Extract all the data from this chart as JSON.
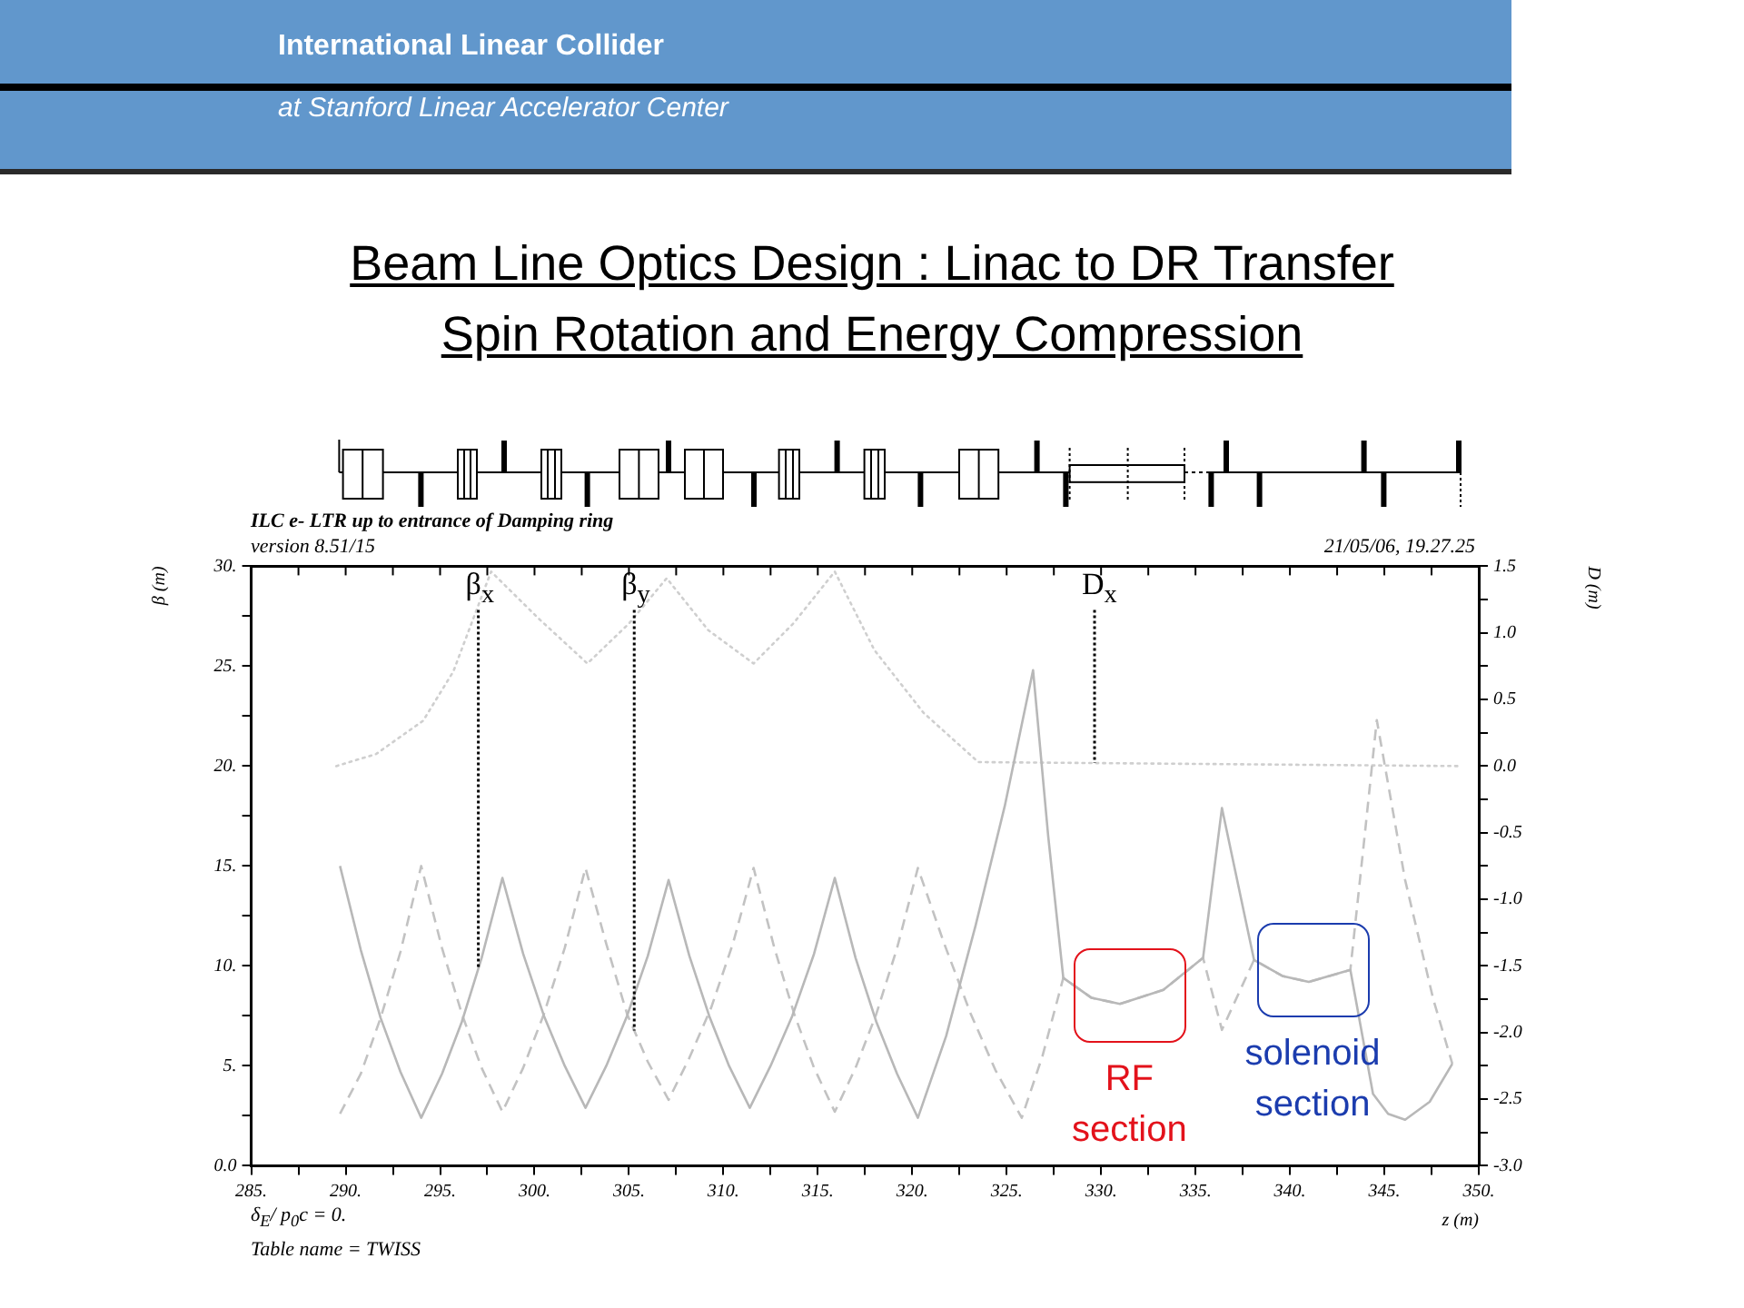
{
  "chart_data": {
    "type": "line",
    "title": "Beam Line Optics Design : Linac to DR Transfer",
    "subtitle": "Spin Rotation and Energy Compression",
    "xlabel": "z (m)",
    "ylabel": "β (m)",
    "y2label": "D (m)",
    "annotations": [
      "International Linear Collider",
      "at Stanford Linear Accelerator Center",
      "ILC e- LTR up to entrance of Damping ring",
      "version 8.51/15",
      "21/05/06, 19.27.25",
      "δ$_{E}$/ p$_{0}$c = 0.",
      "Table name = TWISS",
      {
        "text": "RF section",
        "x": 331.5,
        "y": 8.0
      },
      {
        "text": "solenoid section",
        "x": 341.2,
        "y": 9.25
      }
    ],
    "xlim": [
      285,
      350
    ],
    "xticks": [
      {
        "value": 285,
        "label": "285."
      },
      {
        "value": 287.5,
        "label": null
      },
      {
        "value": 290,
        "label": "290."
      },
      {
        "value": 292.5,
        "label": null
      },
      {
        "value": 295,
        "label": "295."
      },
      {
        "value": 297.5,
        "label": null
      },
      {
        "value": 300,
        "label": "300."
      },
      {
        "value": 302.5,
        "label": null
      },
      {
        "value": 305,
        "label": "305."
      },
      {
        "value": 307.5,
        "label": null
      },
      {
        "value": 310,
        "label": "310."
      },
      {
        "value": 312.5,
        "label": null
      },
      {
        "value": 315,
        "label": "315."
      },
      {
        "value": 317.5,
        "label": null
      },
      {
        "value": 320,
        "label": "320."
      },
      {
        "value": 322.5,
        "label": null
      },
      {
        "value": 325,
        "label": "325."
      },
      {
        "value": 327.5,
        "label": null
      },
      {
        "value": 330,
        "label": "330."
      },
      {
        "value": 332.5,
        "label": null
      },
      {
        "value": 335,
        "label": "335."
      },
      {
        "value": 337.5,
        "label": null
      },
      {
        "value": 340,
        "label": "340."
      },
      {
        "value": 342.5,
        "label": null
      },
      {
        "value": 345,
        "label": "345."
      },
      {
        "value": 347.5,
        "label": null
      },
      {
        "value": 350,
        "label": "350."
      }
    ],
    "ylim": [
      0,
      30
    ],
    "yticks": [
      {
        "value": 0,
        "label": "0.0"
      },
      {
        "value": 2.5,
        "label": null
      },
      {
        "value": 5,
        "label": "5."
      },
      {
        "value": 7.5,
        "label": null
      },
      {
        "value": 10,
        "label": "10."
      },
      {
        "value": 12.5,
        "label": null
      },
      {
        "value": 15,
        "label": "15."
      },
      {
        "value": 17.5,
        "label": null
      },
      {
        "value": 20,
        "label": "20."
      },
      {
        "value": 22.5,
        "label": null
      },
      {
        "value": 25,
        "label": "25."
      },
      {
        "value": 27.5,
        "label": null
      },
      {
        "value": 30,
        "label": "30."
      }
    ],
    "y2lim": [
      -3,
      1.5
    ],
    "y2ticks": [
      {
        "value": -3,
        "label": "-3.0"
      },
      {
        "value": -2.75,
        "label": null
      },
      {
        "value": -2.5,
        "label": "-2.5"
      },
      {
        "value": -2.25,
        "label": null
      },
      {
        "value": -2,
        "label": "-2.0"
      },
      {
        "value": -1.75,
        "label": null
      },
      {
        "value": -1.5,
        "label": "-1.5"
      },
      {
        "value": -1.25,
        "label": null
      },
      {
        "value": -1,
        "label": "-1.0"
      },
      {
        "value": -0.75,
        "label": null
      },
      {
        "value": -0.5,
        "label": "-0.5"
      },
      {
        "value": -0.25,
        "label": null
      },
      {
        "value": 0,
        "label": "0.0"
      },
      {
        "value": 0.25,
        "label": null
      },
      {
        "value": 0.5,
        "label": "0.5"
      },
      {
        "value": 0.75,
        "label": null
      },
      {
        "value": 1,
        "label": "1.0"
      },
      {
        "value": 1.25,
        "label": null
      },
      {
        "value": 1.5,
        "label": "1.5"
      }
    ],
    "series": [
      {
        "name": "β$_{x}$",
        "color": "#b8b8b8",
        "line_style": "solid",
        "x": [
          289.7,
          290.8,
          291.85,
          292.9,
          294.0,
          295.1,
          296.15,
          297.2,
          298.3,
          299.4,
          300.5,
          301.6,
          302.7,
          303.8,
          304.9,
          306.0,
          307.1,
          308.2,
          309.25,
          310.3,
          311.4,
          312.5,
          313.65,
          314.8,
          315.9,
          317.0,
          318.1,
          319.2,
          320.3,
          321.8,
          323.35,
          324.9,
          326.4,
          327.2,
          328.0,
          329.5,
          331.0,
          333.3,
          335.4,
          336.4,
          338.1,
          339.6,
          341.0,
          343.2,
          344.4,
          345.2,
          346.1,
          347.4,
          348.6
        ],
        "values": [
          15.0,
          10.8,
          7.4,
          4.7,
          2.4,
          4.6,
          7.2,
          10.4,
          14.4,
          10.6,
          7.5,
          5.0,
          2.9,
          5.0,
          7.5,
          10.5,
          14.3,
          10.5,
          7.5,
          5.0,
          2.9,
          5.0,
          7.5,
          10.6,
          14.4,
          10.4,
          7.2,
          4.6,
          2.4,
          6.5,
          12.0,
          18.0,
          24.8,
          16.5,
          9.4,
          8.4,
          8.1,
          8.8,
          10.4,
          17.9,
          10.3,
          9.5,
          9.2,
          9.8,
          3.6,
          2.6,
          2.3,
          3.2,
          5.1
        ]
      },
      {
        "name": "β$_{y}$",
        "color": "#c2c2c2",
        "line_style": "dashed",
        "x": [
          289.7,
          290.8,
          291.85,
          292.9,
          294.0,
          295.1,
          296.15,
          297.2,
          298.3,
          299.4,
          300.5,
          301.6,
          302.7,
          303.8,
          304.9,
          306.0,
          307.1,
          308.2,
          309.35,
          310.5,
          311.6,
          312.7,
          313.75,
          314.8,
          315.9,
          317.0,
          318.1,
          319.2,
          320.3,
          321.7,
          323.1,
          324.4,
          325.8,
          326.9,
          328.0,
          329.5,
          331.0,
          333.3,
          335.4,
          336.4,
          338.1,
          339.6,
          341.0,
          343.2,
          343.9,
          344.6,
          346.1,
          347.6,
          348.6
        ],
        "values": [
          2.6,
          4.6,
          7.4,
          10.7,
          15.0,
          10.9,
          7.6,
          4.9,
          2.7,
          4.9,
          7.6,
          10.9,
          14.9,
          11.1,
          7.6,
          5.2,
          3.3,
          5.4,
          7.9,
          11.1,
          14.9,
          10.9,
          7.6,
          4.9,
          2.7,
          4.9,
          7.6,
          10.9,
          14.9,
          11.1,
          7.6,
          4.8,
          2.4,
          5.5,
          9.4,
          8.4,
          8.1,
          8.8,
          10.4,
          6.8,
          10.3,
          9.5,
          9.2,
          9.8,
          16.0,
          22.3,
          14.3,
          8.3,
          5.1
        ]
      },
      {
        "name": "D$_{x}$",
        "color": "#cfcfcf",
        "line_style": "dotted",
        "axis": "y2",
        "x": [
          289.5,
          291.6,
          294.1,
          295.7,
          297.7,
          300.2,
          302.8,
          305.0,
          307.0,
          309.2,
          311.6,
          313.7,
          315.9,
          318.0,
          320.6,
          323.5,
          349.0
        ],
        "values": [
          0.0,
          0.09,
          0.34,
          0.71,
          1.46,
          1.11,
          0.77,
          1.07,
          1.41,
          1.02,
          0.77,
          1.07,
          1.46,
          0.87,
          0.4,
          0.03,
          0.0
        ]
      }
    ]
  }
}
